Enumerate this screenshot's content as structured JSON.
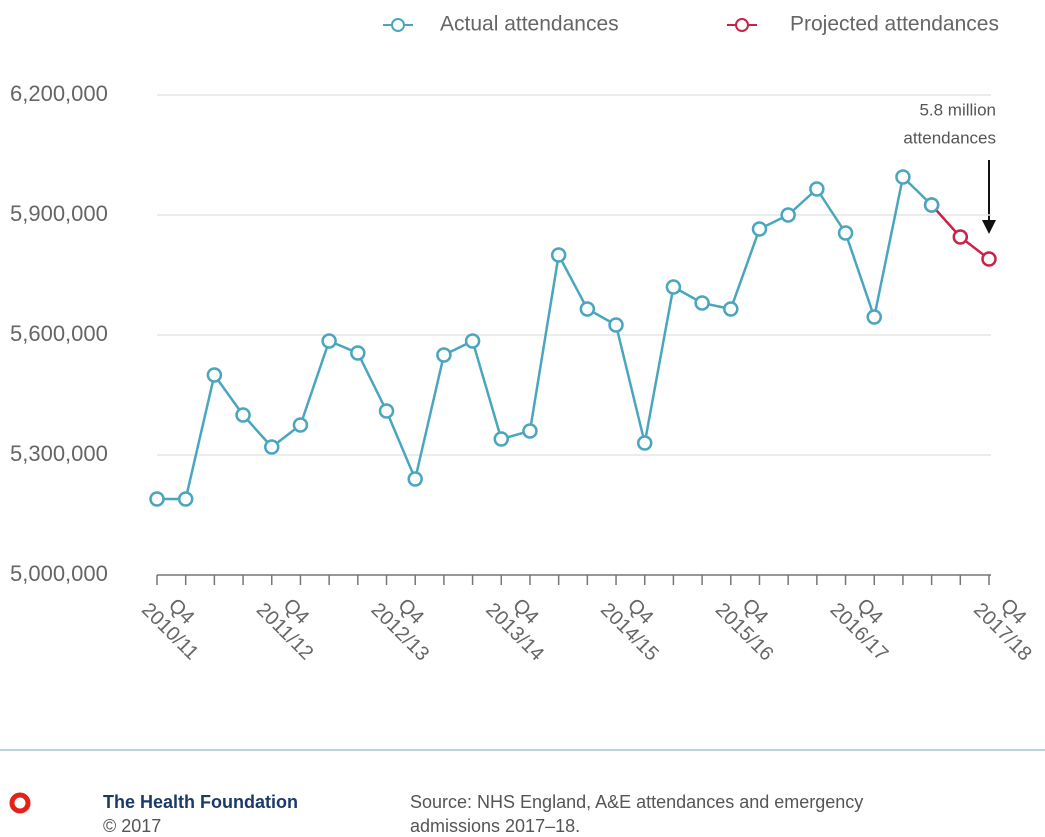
{
  "chart_data": {
    "type": "line",
    "categories": [
      "Q4 2010/11",
      null,
      null,
      null,
      "Q4 2011/12",
      null,
      null,
      null,
      "Q4 2012/13",
      null,
      null,
      null,
      "Q4 2013/14",
      null,
      null,
      null,
      "Q4 2014/15",
      null,
      null,
      null,
      "Q4 2015/16",
      null,
      null,
      null,
      "Q4 2016/17",
      null,
      null,
      null,
      null,
      "Q4 2017/18"
    ],
    "series": [
      {
        "name": "Actual attendances",
        "color": "#4aa6bf",
        "values": [
          5190000,
          5190000,
          5500000,
          5400000,
          5320000,
          5375000,
          5585000,
          5555000,
          5410000,
          5240000,
          5550000,
          5585000,
          5340000,
          5360000,
          5800000,
          5665000,
          5625000,
          5330000,
          5720000,
          5680000,
          5665000,
          5865000,
          5900000,
          5965000,
          5855000,
          5645000,
          5995000,
          5925000,
          null,
          null
        ]
      },
      {
        "name": "Projected attendances",
        "color": "#c8234a",
        "values": [
          null,
          null,
          null,
          null,
          null,
          null,
          null,
          null,
          null,
          null,
          null,
          null,
          null,
          null,
          null,
          null,
          null,
          null,
          null,
          null,
          null,
          null,
          null,
          null,
          null,
          null,
          null,
          5925000,
          5845000,
          5790000
        ]
      }
    ],
    "ylim": [
      5000000,
      6200000
    ],
    "yticks": [
      {
        "value": 5000000,
        "label": "5,000,000"
      },
      {
        "value": 5300000,
        "label": "5,300,000"
      },
      {
        "value": 5600000,
        "label": "5,600,000"
      },
      {
        "value": 5900000,
        "label": "5,900,000"
      },
      {
        "value": 6200000,
        "label": "6,200,000"
      }
    ],
    "grid": true,
    "annotation": [
      "5.8 million",
      "attendances"
    ]
  },
  "footer": {
    "organization": "The Health Foundation",
    "copyright": "© 2017",
    "source": [
      "Source: NHS England, A&E attendances and emergency",
      "admissions 2017–18."
    ]
  }
}
